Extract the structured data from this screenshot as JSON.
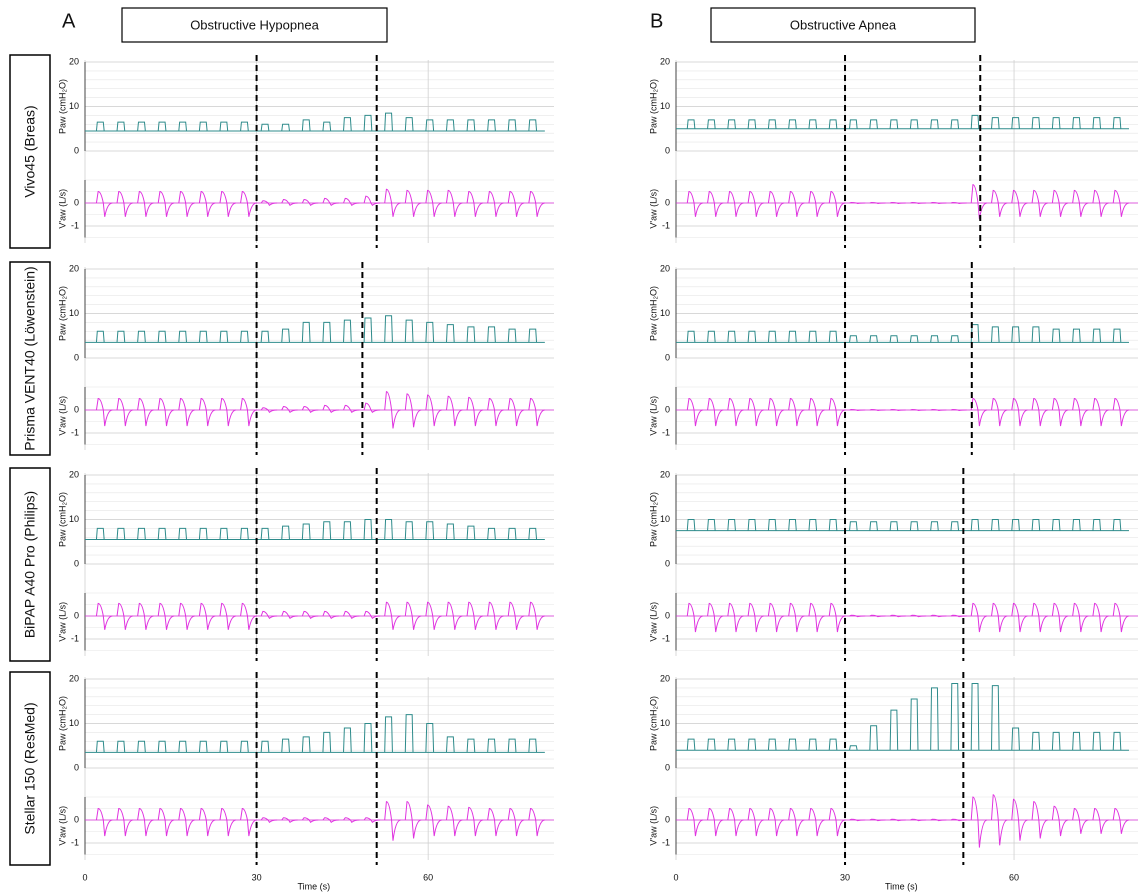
{
  "columns": [
    {
      "label": "A",
      "title": "Obstructive Hypopnea",
      "xlim": [
        0,
        82
      ]
    },
    {
      "label": "B",
      "title": "Obstructive Apnea",
      "xlim": [
        0,
        82
      ]
    }
  ],
  "devices": [
    "Vivo45 (Breas)",
    "Prisma VENT40 (Löwenstein)",
    "BiPAP A40 Pro (Philips)",
    "Stellar 150 (ResMed)"
  ],
  "paw_axis": {
    "label": "Paw (cmH₂O)",
    "ylim": [
      0,
      20
    ],
    "yticks": [
      0,
      10,
      20
    ],
    "color": "#2e8b8b"
  },
  "flow_axis": {
    "label": "V'aw (L/s)",
    "ylim": [
      -1.5,
      1
    ],
    "yticks": [
      -1,
      0
    ],
    "color": "#e033e0"
  },
  "x_axis": {
    "label": "Time (s)",
    "xticks": [
      0,
      30,
      60
    ]
  },
  "breath_onsets": [
    2,
    5.6,
    9.2,
    12.8,
    16.4,
    20,
    23.6,
    27.2,
    30.8,
    34.4,
    38,
    41.6,
    45.2,
    48.8,
    52.4,
    56,
    59.6,
    63.2,
    66.8,
    70.4,
    74,
    77.6
  ],
  "panels": [
    [
      {
        "events": [
          30,
          51
        ],
        "paw_base": 4.5,
        "paw_peaks": [
          6.5,
          6.5,
          6.5,
          6.5,
          6.5,
          6.5,
          6.5,
          6.5,
          6,
          6,
          7,
          6.5,
          7.5,
          8,
          8.5,
          7.5,
          7,
          7,
          7,
          7,
          7,
          7
        ],
        "flow_peaks": [
          0.5,
          0.5,
          0.5,
          0.5,
          0.5,
          0.5,
          0.5,
          0.5,
          0.1,
          0.15,
          0.15,
          0.2,
          0.2,
          0.3,
          0.6,
          0.55,
          0.55,
          0.55,
          0.5,
          0.5,
          0.5,
          0.5
        ],
        "flow_troughs": [
          -0.6,
          -0.6,
          -0.6,
          -0.6,
          -0.6,
          -0.6,
          -0.6,
          -0.6,
          -0.1,
          -0.1,
          -0.1,
          -0.1,
          -0.1,
          -0.1,
          -0.6,
          -0.6,
          -0.6,
          -0.6,
          -0.6,
          -0.6,
          -0.6,
          -0.6
        ]
      },
      {
        "events": [
          30,
          48.5
        ],
        "paw_base": 3.5,
        "paw_peaks": [
          6,
          6,
          6,
          6,
          6,
          6,
          6,
          6,
          6,
          6.5,
          8,
          8,
          8.5,
          9,
          9.5,
          8.5,
          8,
          7.5,
          7,
          7,
          6.5,
          6.5
        ],
        "flow_peaks": [
          0.5,
          0.5,
          0.5,
          0.5,
          0.5,
          0.5,
          0.5,
          0.5,
          0.1,
          0.15,
          0.15,
          0.2,
          0.2,
          0.3,
          0.8,
          0.7,
          0.65,
          0.6,
          0.55,
          0.5,
          0.5,
          0.5
        ],
        "flow_troughs": [
          -0.7,
          -0.7,
          -0.7,
          -0.7,
          -0.7,
          -0.7,
          -0.7,
          -0.7,
          -0.1,
          -0.1,
          -0.1,
          -0.1,
          -0.1,
          -0.1,
          -0.8,
          -0.75,
          -0.7,
          -0.7,
          -0.7,
          -0.7,
          -0.7,
          -0.7
        ]
      },
      {
        "events": [
          30,
          51
        ],
        "paw_base": 5.5,
        "paw_peaks": [
          8,
          8,
          8,
          8,
          8,
          8,
          8,
          8,
          8,
          8.5,
          9,
          9.5,
          9.5,
          10,
          10,
          9.5,
          9.5,
          9,
          8.5,
          8,
          8,
          8
        ],
        "flow_peaks": [
          0.55,
          0.55,
          0.55,
          0.55,
          0.55,
          0.55,
          0.55,
          0.55,
          0.2,
          0.2,
          0.2,
          0.2,
          0.2,
          0.2,
          0.6,
          0.6,
          0.6,
          0.6,
          0.6,
          0.6,
          0.6,
          0.6
        ],
        "flow_troughs": [
          -0.6,
          -0.6,
          -0.6,
          -0.6,
          -0.6,
          -0.6,
          -0.6,
          -0.6,
          -0.1,
          -0.1,
          -0.1,
          -0.1,
          -0.1,
          -0.1,
          -0.6,
          -0.6,
          -0.6,
          -0.6,
          -0.6,
          -0.6,
          -0.6,
          -0.6
        ]
      },
      {
        "events": [
          30,
          51
        ],
        "paw_base": 3.5,
        "paw_peaks": [
          6,
          6,
          6,
          6,
          6,
          6,
          6,
          6,
          6,
          6.5,
          7,
          8,
          9,
          10,
          11.5,
          12,
          10,
          7,
          6.5,
          6.5,
          6.5,
          6.5
        ],
        "flow_peaks": [
          0.5,
          0.5,
          0.5,
          0.5,
          0.5,
          0.5,
          0.5,
          0.5,
          0.1,
          0.1,
          0.1,
          0.1,
          0.1,
          0.1,
          0.8,
          0.8,
          0.65,
          0.6,
          0.55,
          0.5,
          0.5,
          0.5
        ],
        "flow_troughs": [
          -0.7,
          -0.7,
          -0.7,
          -0.7,
          -0.7,
          -0.7,
          -0.7,
          -0.7,
          -0.1,
          -0.1,
          -0.1,
          -0.1,
          -0.1,
          -0.1,
          -0.9,
          -0.8,
          -0.7,
          -0.7,
          -0.7,
          -0.7,
          -0.7,
          -0.7
        ]
      }
    ],
    [
      {
        "events": [
          30,
          54
        ],
        "paw_base": 5,
        "paw_peaks": [
          7,
          7,
          7,
          7,
          7,
          7,
          7,
          7,
          7,
          7,
          7,
          7,
          7,
          7,
          8,
          7.5,
          7.5,
          7.5,
          7.5,
          7.5,
          7.5,
          7.5
        ],
        "flow_peaks": [
          0.5,
          0.5,
          0.5,
          0.5,
          0.5,
          0.5,
          0.5,
          0.5,
          0.02,
          0.02,
          0.02,
          0.02,
          0.02,
          0.02,
          0.8,
          0.55,
          0.55,
          0.55,
          0.55,
          0.55,
          0.55,
          0.55
        ],
        "flow_troughs": [
          -0.6,
          -0.6,
          -0.6,
          -0.6,
          -0.6,
          -0.6,
          -0.6,
          -0.6,
          -0.02,
          -0.02,
          -0.02,
          -0.02,
          -0.02,
          -0.02,
          -0.7,
          -0.6,
          -0.6,
          -0.6,
          -0.6,
          -0.6,
          -0.6,
          -0.6
        ]
      },
      {
        "events": [
          30,
          52.5
        ],
        "paw_base": 3.5,
        "paw_peaks": [
          6,
          6,
          6,
          6,
          6,
          6,
          6,
          6,
          5,
          5,
          5,
          5,
          5,
          5,
          7.5,
          7,
          7,
          7,
          6.5,
          6.5,
          6.5,
          6.5
        ],
        "flow_peaks": [
          0.5,
          0.5,
          0.5,
          0.5,
          0.5,
          0.5,
          0.5,
          0.5,
          0.02,
          0.02,
          0.02,
          0.02,
          0.02,
          0.02,
          0.5,
          0.5,
          0.5,
          0.5,
          0.5,
          0.5,
          0.5,
          0.5
        ],
        "flow_troughs": [
          -0.7,
          -0.7,
          -0.7,
          -0.7,
          -0.7,
          -0.7,
          -0.7,
          -0.7,
          -0.02,
          -0.02,
          -0.02,
          -0.02,
          -0.02,
          -0.02,
          -0.7,
          -0.7,
          -0.7,
          -0.7,
          -0.7,
          -0.7,
          -0.7,
          -0.7
        ]
      },
      {
        "events": [
          30,
          51
        ],
        "paw_base": 7.5,
        "paw_peaks": [
          10,
          10,
          10,
          10,
          10,
          10,
          10,
          10,
          9.5,
          9.5,
          9.5,
          9.5,
          9.5,
          9.5,
          10,
          10,
          10,
          10,
          10,
          10,
          10,
          10
        ],
        "flow_peaks": [
          0.55,
          0.55,
          0.55,
          0.55,
          0.55,
          0.55,
          0.55,
          0.55,
          0.03,
          0.03,
          0.03,
          0.03,
          0.03,
          0.03,
          0.55,
          0.55,
          0.55,
          0.55,
          0.55,
          0.55,
          0.55,
          0.55
        ],
        "flow_troughs": [
          -0.7,
          -0.7,
          -0.7,
          -0.7,
          -0.7,
          -0.7,
          -0.7,
          -0.7,
          -0.03,
          -0.03,
          -0.03,
          -0.03,
          -0.03,
          -0.03,
          -0.7,
          -0.7,
          -0.7,
          -0.7,
          -0.7,
          -0.7,
          -0.7,
          -0.7
        ]
      },
      {
        "events": [
          30,
          51
        ],
        "paw_base": 4,
        "paw_peaks": [
          6.5,
          6.5,
          6.5,
          6.5,
          6.5,
          6.5,
          6.5,
          6.5,
          5,
          9.5,
          13,
          15.5,
          18,
          19,
          19,
          18.5,
          9,
          8,
          8,
          8,
          8,
          8
        ],
        "flow_peaks": [
          0.5,
          0.5,
          0.5,
          0.5,
          0.5,
          0.5,
          0.5,
          0.5,
          0.03,
          0.03,
          0.03,
          0.03,
          0.03,
          0.03,
          1,
          1.1,
          0.9,
          0.8,
          0.6,
          0.5,
          0.5,
          0.5
        ],
        "flow_troughs": [
          -0.7,
          -0.7,
          -0.7,
          -0.7,
          -0.7,
          -0.7,
          -0.7,
          -0.7,
          -0.03,
          -0.03,
          -0.03,
          -0.03,
          -0.03,
          -0.03,
          -1.2,
          -1.1,
          -0.9,
          -0.8,
          -0.7,
          -0.6,
          -0.6,
          -0.6
        ]
      }
    ]
  ]
}
